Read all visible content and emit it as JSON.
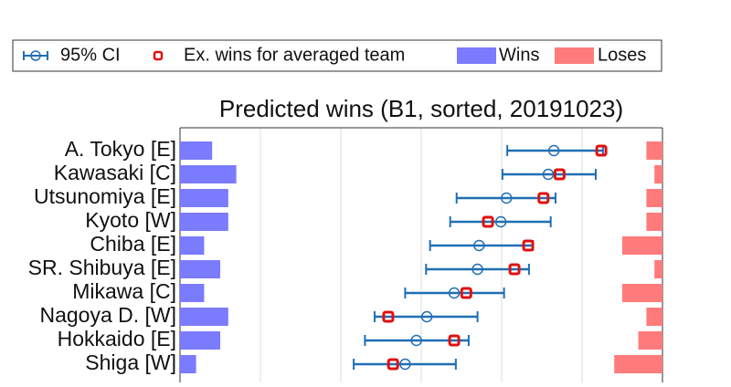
{
  "chart_data": {
    "type": "dot-interval",
    "title": "Predicted wins (B1, sorted, 20191023)",
    "categories": [
      "A. Tokyo [E]",
      "Kawasaki [C]",
      "Utsunomiya [E]",
      "Kyoto [W]",
      "Chiba [E]",
      "SR. Shibuya [E]",
      "Mikawa [C]",
      "Nagoya D. [W]",
      "Hokkaido [E]",
      "Shiga [W]"
    ],
    "xlim": [
      0,
      60
    ],
    "xticks": [
      0,
      10,
      20,
      30,
      40,
      50,
      60
    ],
    "grid": true,
    "legend": "top",
    "series": [
      {
        "name": "95% CI",
        "color": "#1f6fb5",
        "values": [
          46.5,
          45.8,
          40.6,
          39.9,
          37.2,
          37.0,
          34.1,
          30.7,
          29.4,
          28.0
        ],
        "lower": [
          40.7,
          40.1,
          34.4,
          33.6,
          31.1,
          30.6,
          28.0,
          24.2,
          23.0,
          21.6
        ],
        "upper": [
          52.6,
          51.7,
          46.7,
          46.1,
          43.9,
          43.4,
          40.3,
          37.0,
          35.9,
          34.3
        ]
      },
      {
        "name": "Ex. wins for averaged team",
        "color": "#e01010",
        "values": [
          52.4,
          47.2,
          45.2,
          38.3,
          43.3,
          41.6,
          35.6,
          25.9,
          34.1,
          26.5
        ]
      },
      {
        "name": "Wins",
        "color": "#7b7bff",
        "values": [
          4,
          7,
          6,
          6,
          3,
          5,
          3,
          6,
          5,
          2
        ]
      },
      {
        "name": "Loses",
        "color": "#ff7b7b",
        "values": [
          2,
          1,
          2,
          2,
          5,
          1,
          5,
          2,
          3,
          6
        ]
      }
    ]
  }
}
